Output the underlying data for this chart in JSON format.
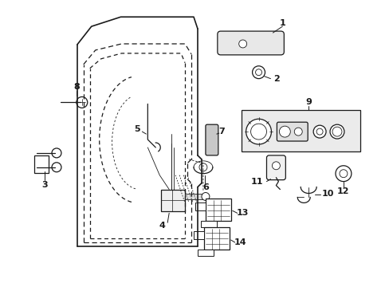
{
  "bg_color": "#ffffff",
  "fig_width": 4.89,
  "fig_height": 3.6,
  "dpi": 100,
  "line_color": "#1a1a1a"
}
